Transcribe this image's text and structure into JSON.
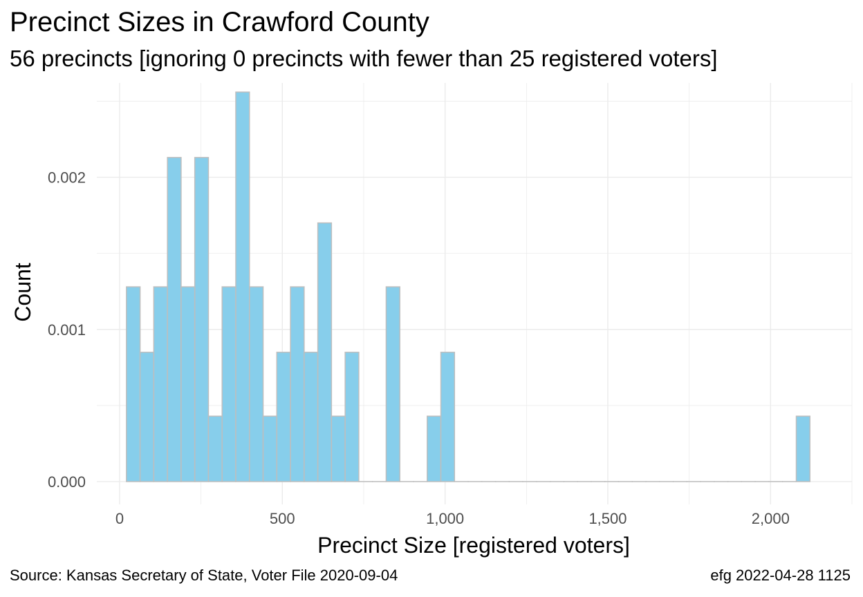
{
  "chart_data": {
    "type": "bar",
    "title": "Precinct Sizes in Crawford County",
    "subtitle": "56 precincts [ignoring 0 precincts with fewer than 25 registered voters]",
    "xlabel": "Precinct Size [registered voters]",
    "ylabel": "Count",
    "xlim": [
      -70,
      2250
    ],
    "ylim": [
      -0.00015,
      0.00262
    ],
    "x_ticks": [
      0,
      500,
      1000,
      1500,
      2000
    ],
    "x_tick_labels": [
      "0",
      "500",
      "1,000",
      "1,500",
      "2,000"
    ],
    "y_ticks": [
      0.0,
      0.001,
      0.002
    ],
    "y_tick_labels": [
      "0.000",
      "0.001",
      "0.002"
    ],
    "grid": true,
    "bin_width": 42,
    "bin_starts": [
      21,
      63,
      105,
      147,
      189,
      231,
      273,
      315,
      357,
      399,
      441,
      483,
      525,
      567,
      609,
      651,
      693,
      735,
      777,
      819,
      861,
      903,
      945,
      987,
      1029,
      1071,
      1113,
      1155,
      1197,
      1239,
      1281,
      1323,
      1365,
      1407,
      1449,
      1491,
      1533,
      1575,
      1617,
      1659,
      1701,
      1743,
      1785,
      1827,
      1869,
      1911,
      1953,
      1995,
      2037,
      2079
    ],
    "values": [
      0.00128,
      0.00085,
      0.00128,
      0.00213,
      0.00128,
      0.00213,
      0.00043,
      0.00128,
      0.00256,
      0.00128,
      0.00043,
      0.00085,
      0.00128,
      0.00085,
      0.0017,
      0.00043,
      0.00085,
      0,
      0,
      0.00128,
      0,
      0,
      0.00043,
      0.00085,
      0,
      0,
      0,
      0,
      0,
      0,
      0,
      0,
      0,
      0,
      0,
      0,
      0,
      0,
      0,
      0,
      0,
      0,
      0,
      0,
      0,
      0,
      0,
      0,
      0,
      0.00043
    ],
    "bar_fill": "#87CEEB",
    "bar_outline": "#BEBEBE"
  },
  "caption": {
    "source": "Source:  Kansas Secretary of State, Voter File  2020-09-04",
    "stamp": "efg 2022-04-28 1125"
  }
}
